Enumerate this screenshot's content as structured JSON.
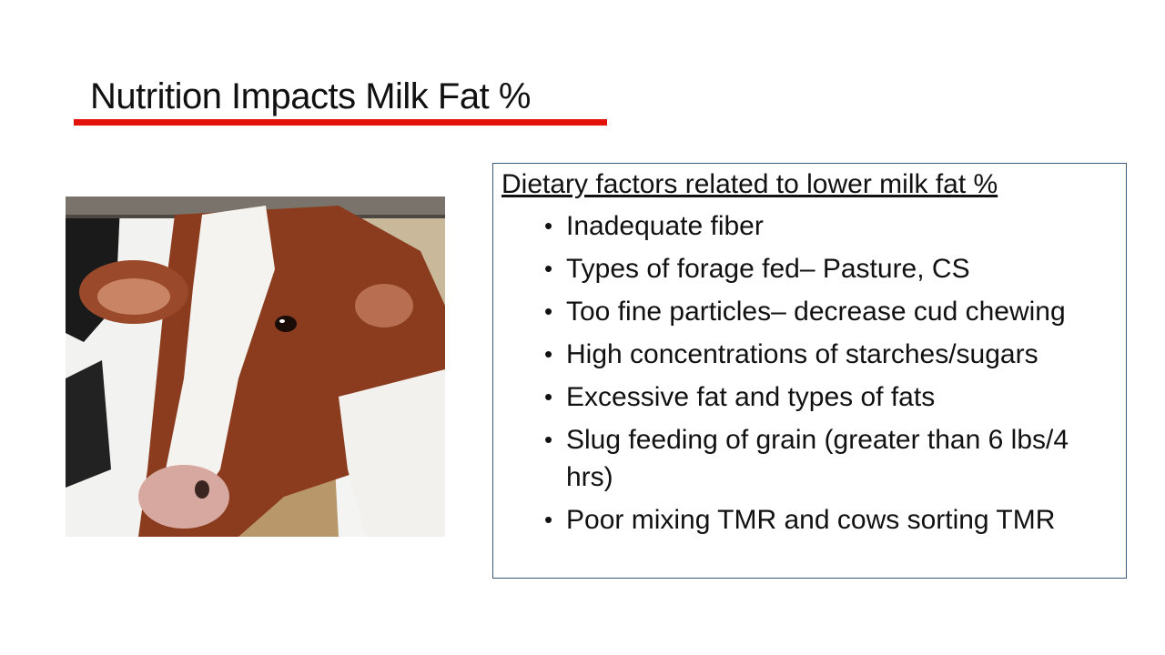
{
  "slide": {
    "title": "Nutrition Impacts Milk Fat %",
    "accent_color": "#e3120b",
    "box_border_color": "#3b5777"
  },
  "photo": {
    "subject": "brown and white cow face at feed bunk"
  },
  "factors": {
    "heading": "Dietary factors related to lower milk fat %",
    "items": [
      "Inadequate fiber",
      "Types of forage fed– Pasture, CS",
      "Too fine particles– decrease cud chewing",
      "High concentrations of starches/sugars",
      "Excessive fat and types of fats",
      "Slug feeding of grain (greater than 6 lbs/4 hrs)",
      "Poor mixing TMR and cows sorting TMR"
    ]
  }
}
